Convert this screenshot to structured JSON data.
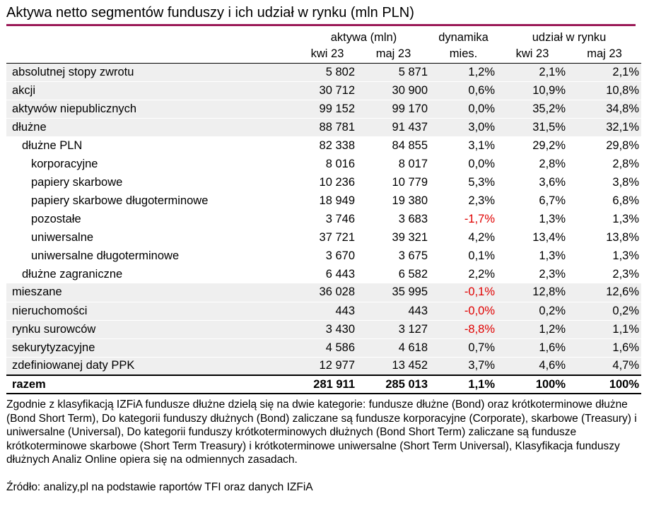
{
  "title": "Aktywa netto segmentów funduszy i ich udział w rynku (mln PLN)",
  "colors": {
    "accent_line": "#9B1B58",
    "negative_value": "#E00000",
    "row_shade": "#EFEFEF"
  },
  "header": {
    "group_aktywa": "aktywa (mln)",
    "group_dynamika_line1": "dynamika",
    "group_dynamika_line2": "mies.",
    "group_udzial": "udział w rynku",
    "sub_aktywa_kwi": "kwi 23",
    "sub_aktywa_maj": "maj 23",
    "sub_udzial_kwi": "kwi 23",
    "sub_udzial_maj": "maj 23"
  },
  "chart_data": {
    "type": "table",
    "title": "Aktywa netto segmentów funduszy i ich udział w rynku (mln PLN)",
    "columns": [
      "segment",
      "aktywa (mln) kwi 23",
      "aktywa (mln) maj 23",
      "dynamika mies.",
      "udział w rynku kwi 23",
      "udział w rynku maj 23"
    ],
    "rows": [
      {
        "label": "absolutnej stopy zwrotu",
        "indent": 0,
        "shade": true,
        "total": false,
        "values": [
          "5 802",
          "5 871",
          "1,2%",
          "2,1%",
          "2,1%"
        ]
      },
      {
        "label": "akcji",
        "indent": 0,
        "shade": true,
        "total": false,
        "values": [
          "30 712",
          "30 900",
          "0,6%",
          "10,9%",
          "10,8%"
        ]
      },
      {
        "label": "aktywów niepublicznych",
        "indent": 0,
        "shade": true,
        "total": false,
        "values": [
          "99 152",
          "99 170",
          "0,0%",
          "35,2%",
          "34,8%"
        ]
      },
      {
        "label": "dłużne",
        "indent": 0,
        "shade": true,
        "total": false,
        "values": [
          "88 781",
          "91 437",
          "3,0%",
          "31,5%",
          "32,1%"
        ]
      },
      {
        "label": "dłużne PLN",
        "indent": 1,
        "shade": false,
        "total": false,
        "values": [
          "82 338",
          "84 855",
          "3,1%",
          "29,2%",
          "29,8%"
        ]
      },
      {
        "label": "korporacyjne",
        "indent": 2,
        "shade": false,
        "total": false,
        "values": [
          "8 016",
          "8 017",
          "0,0%",
          "2,8%",
          "2,8%"
        ]
      },
      {
        "label": "papiery skarbowe",
        "indent": 2,
        "shade": false,
        "total": false,
        "values": [
          "10 236",
          "10 779",
          "5,3%",
          "3,6%",
          "3,8%"
        ]
      },
      {
        "label": "papiery skarbowe długoterminowe",
        "indent": 2,
        "shade": false,
        "total": false,
        "values": [
          "18 949",
          "19 380",
          "2,3%",
          "6,7%",
          "6,8%"
        ]
      },
      {
        "label": "pozostałe",
        "indent": 2,
        "shade": false,
        "total": false,
        "values": [
          "3 746",
          "3 683",
          "-1,7%",
          "1,3%",
          "1,3%"
        ]
      },
      {
        "label": "uniwersalne",
        "indent": 2,
        "shade": false,
        "total": false,
        "values": [
          "37 721",
          "39 321",
          "4,2%",
          "13,4%",
          "13,8%"
        ]
      },
      {
        "label": "uniwersalne długoterminowe",
        "indent": 2,
        "shade": false,
        "total": false,
        "values": [
          "3 670",
          "3 675",
          "0,1%",
          "1,3%",
          "1,3%"
        ]
      },
      {
        "label": "dłużne zagraniczne",
        "indent": 1,
        "shade": false,
        "total": false,
        "values": [
          "6 443",
          "6 582",
          "2,2%",
          "2,3%",
          "2,3%"
        ]
      },
      {
        "label": "mieszane",
        "indent": 0,
        "shade": true,
        "total": false,
        "values": [
          "36 028",
          "35 995",
          "-0,1%",
          "12,8%",
          "12,6%"
        ]
      },
      {
        "label": "nieruchomości",
        "indent": 0,
        "shade": true,
        "total": false,
        "values": [
          "443",
          "443",
          "-0,0%",
          "0,2%",
          "0,2%"
        ]
      },
      {
        "label": "rynku surowców",
        "indent": 0,
        "shade": true,
        "total": false,
        "values": [
          "3 430",
          "3 127",
          "-8,8%",
          "1,2%",
          "1,1%"
        ]
      },
      {
        "label": "sekurytyzacyjne",
        "indent": 0,
        "shade": true,
        "total": false,
        "values": [
          "4 586",
          "4 618",
          "0,7%",
          "1,6%",
          "1,6%"
        ]
      },
      {
        "label": "zdefiniowanej daty PPK",
        "indent": 0,
        "shade": true,
        "total": false,
        "values": [
          "12 977",
          "13 452",
          "3,7%",
          "4,6%",
          "4,7%"
        ]
      },
      {
        "label": "razem",
        "indent": 0,
        "shade": false,
        "total": true,
        "values": [
          "281 911",
          "285 013",
          "1,1%",
          "100%",
          "100%"
        ]
      }
    ]
  },
  "notes": "Zgodnie z klasyfikacją IZFiA fundusze dłużne dzielą się na dwie kategorie: fundusze dłużne (Bond) oraz krótkoterminowe dłużne (Bond Short Term), Do kategorii funduszy dłużnych (Bond) zaliczane są fundusze korporacyjne (Corporate), skarbowe (Treasury) i uniwersalne (Universal), Do kategorii funduszy krótkoterminowych dłużnych (Bond Short Term) zaliczane są fundusze krótkoterminowe skarbowe (Short Term Treasury) i krótkoterminowe uniwersalne (Short Term Universal), Klasyfikacja funduszy dłużnych Analiz Online opiera się na odmiennych zasadach.",
  "source": "Źródło: analizy,pl na podstawie raportów TFI oraz danych IZFiA"
}
